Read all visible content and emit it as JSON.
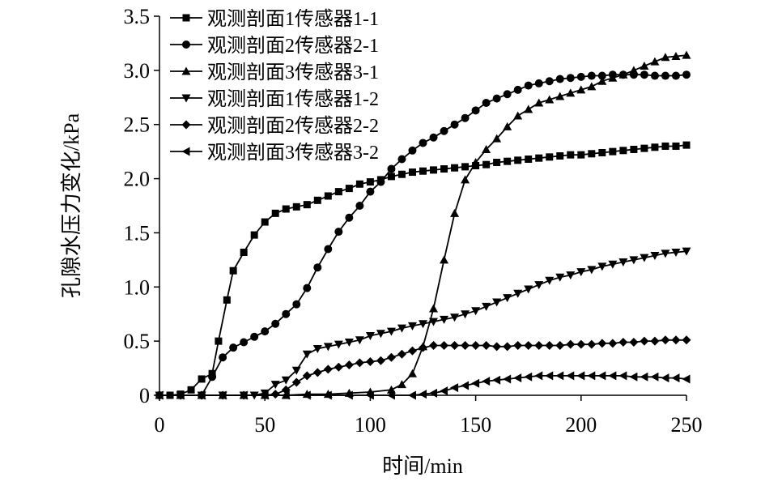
{
  "chart_data": {
    "type": "line",
    "title": "",
    "xlabel": "时间/min",
    "ylabel": "孔隙水压力变化/kPa",
    "xlim": [
      0,
      250
    ],
    "ylim": [
      0,
      3.5
    ],
    "xticks": [
      "0",
      "50",
      "100",
      "150",
      "200",
      "250"
    ],
    "yticks": [
      "0",
      "0.5",
      "1.0",
      "1.5",
      "2.0",
      "2.5",
      "3.0",
      "3.5"
    ],
    "grid": false,
    "legend_position": "top-left",
    "series": [
      {
        "name": "观测剖面1传感器1-1",
        "marker": "square",
        "x": [
          0,
          5,
          10,
          15,
          20,
          25,
          28,
          32,
          35,
          40,
          45,
          50,
          55,
          60,
          65,
          70,
          75,
          80,
          85,
          90,
          95,
          100,
          105,
          110,
          115,
          120,
          125,
          130,
          135,
          140,
          145,
          150,
          155,
          160,
          165,
          170,
          175,
          180,
          185,
          190,
          195,
          200,
          205,
          210,
          215,
          220,
          225,
          230,
          235,
          240,
          245,
          250
        ],
        "y": [
          0,
          0,
          0.01,
          0.05,
          0.15,
          0.2,
          0.5,
          0.88,
          1.15,
          1.32,
          1.48,
          1.6,
          1.68,
          1.72,
          1.74,
          1.76,
          1.8,
          1.84,
          1.88,
          1.91,
          1.95,
          1.97,
          1.99,
          2.02,
          2.04,
          2.06,
          2.07,
          2.08,
          2.09,
          2.1,
          2.11,
          2.12,
          2.13,
          2.15,
          2.16,
          2.17,
          2.18,
          2.19,
          2.2,
          2.21,
          2.22,
          2.22,
          2.23,
          2.24,
          2.25,
          2.26,
          2.27,
          2.28,
          2.29,
          2.3,
          2.3,
          2.31
        ]
      },
      {
        "name": "观测剖面2传感器2-1",
        "marker": "circle",
        "x": [
          0,
          10,
          20,
          25,
          30,
          35,
          40,
          45,
          50,
          55,
          60,
          65,
          70,
          75,
          80,
          85,
          90,
          95,
          100,
          105,
          110,
          115,
          120,
          125,
          130,
          135,
          140,
          145,
          150,
          155,
          160,
          165,
          170,
          175,
          180,
          185,
          190,
          195,
          200,
          205,
          210,
          215,
          220,
          225,
          230,
          235,
          240,
          245,
          250
        ],
        "y": [
          0,
          0,
          0,
          0.17,
          0.35,
          0.44,
          0.49,
          0.54,
          0.59,
          0.66,
          0.75,
          0.84,
          0.99,
          1.18,
          1.35,
          1.51,
          1.64,
          1.75,
          1.88,
          1.97,
          2.09,
          2.18,
          2.26,
          2.33,
          2.38,
          2.44,
          2.5,
          2.56,
          2.63,
          2.7,
          2.74,
          2.78,
          2.82,
          2.86,
          2.88,
          2.9,
          2.92,
          2.93,
          2.94,
          2.95,
          2.95,
          2.96,
          2.96,
          2.96,
          2.96,
          2.95,
          2.95,
          2.95,
          2.96
        ]
      },
      {
        "name": "观测剖面3传感器3-1",
        "marker": "triangle-up",
        "x": [
          0,
          10,
          20,
          30,
          40,
          50,
          60,
          70,
          80,
          90,
          100,
          110,
          115,
          120,
          125,
          130,
          135,
          140,
          145,
          150,
          155,
          160,
          165,
          170,
          175,
          180,
          185,
          190,
          195,
          200,
          205,
          210,
          215,
          220,
          225,
          230,
          235,
          240,
          245,
          250
        ],
        "y": [
          0,
          0,
          0,
          0,
          0,
          0,
          0,
          0.01,
          0.01,
          0.02,
          0.03,
          0.05,
          0.1,
          0.2,
          0.45,
          0.8,
          1.25,
          1.68,
          1.99,
          2.15,
          2.27,
          2.37,
          2.48,
          2.58,
          2.64,
          2.7,
          2.73,
          2.76,
          2.79,
          2.82,
          2.85,
          2.9,
          2.93,
          2.96,
          3.0,
          3.04,
          3.08,
          3.12,
          3.13,
          3.14
        ]
      },
      {
        "name": "观测剖面1传感器1-2",
        "marker": "triangle-down",
        "x": [
          0,
          10,
          20,
          30,
          40,
          45,
          50,
          55,
          60,
          65,
          70,
          75,
          80,
          85,
          90,
          95,
          100,
          105,
          110,
          115,
          120,
          125,
          130,
          135,
          140,
          145,
          150,
          155,
          160,
          165,
          170,
          175,
          180,
          185,
          190,
          195,
          200,
          205,
          210,
          215,
          220,
          225,
          230,
          235,
          240,
          245,
          250
        ],
        "y": [
          0,
          0,
          0,
          0,
          0,
          0,
          0.02,
          0.1,
          0.14,
          0.23,
          0.38,
          0.43,
          0.45,
          0.47,
          0.49,
          0.51,
          0.55,
          0.57,
          0.59,
          0.62,
          0.64,
          0.66,
          0.68,
          0.7,
          0.72,
          0.75,
          0.78,
          0.82,
          0.86,
          0.9,
          0.94,
          0.98,
          1.02,
          1.06,
          1.09,
          1.11,
          1.14,
          1.16,
          1.19,
          1.21,
          1.23,
          1.25,
          1.27,
          1.29,
          1.31,
          1.32,
          1.33
        ]
      },
      {
        "name": "观测剖面2传感器2-2",
        "marker": "diamond",
        "x": [
          0,
          10,
          20,
          30,
          40,
          50,
          55,
          60,
          65,
          70,
          75,
          80,
          85,
          90,
          95,
          100,
          105,
          110,
          115,
          120,
          125,
          130,
          135,
          140,
          145,
          150,
          155,
          160,
          165,
          170,
          175,
          180,
          185,
          190,
          195,
          200,
          205,
          210,
          215,
          220,
          225,
          230,
          235,
          240,
          245,
          250
        ],
        "y": [
          0,
          0,
          0,
          0,
          0,
          0,
          0.01,
          0.05,
          0.12,
          0.18,
          0.21,
          0.24,
          0.26,
          0.28,
          0.3,
          0.31,
          0.32,
          0.35,
          0.38,
          0.41,
          0.44,
          0.46,
          0.46,
          0.46,
          0.46,
          0.46,
          0.46,
          0.45,
          0.45,
          0.46,
          0.46,
          0.46,
          0.46,
          0.46,
          0.47,
          0.47,
          0.47,
          0.48,
          0.48,
          0.49,
          0.49,
          0.5,
          0.5,
          0.51,
          0.51,
          0.51
        ]
      },
      {
        "name": "观测剖面3传感器3-2",
        "marker": "triangle-left",
        "x": [
          0,
          10,
          20,
          30,
          40,
          50,
          60,
          70,
          80,
          90,
          100,
          110,
          120,
          125,
          130,
          135,
          140,
          145,
          150,
          155,
          160,
          165,
          170,
          175,
          180,
          185,
          190,
          195,
          200,
          205,
          210,
          215,
          220,
          225,
          230,
          235,
          240,
          245,
          250
        ],
        "y": [
          0,
          0,
          0,
          0,
          0,
          0,
          0,
          0,
          0,
          0,
          0,
          0,
          0,
          0.01,
          0.02,
          0.04,
          0.07,
          0.09,
          0.11,
          0.13,
          0.14,
          0.15,
          0.16,
          0.17,
          0.18,
          0.18,
          0.18,
          0.18,
          0.18,
          0.18,
          0.18,
          0.18,
          0.18,
          0.17,
          0.17,
          0.17,
          0.16,
          0.16,
          0.15
        ]
      }
    ]
  }
}
